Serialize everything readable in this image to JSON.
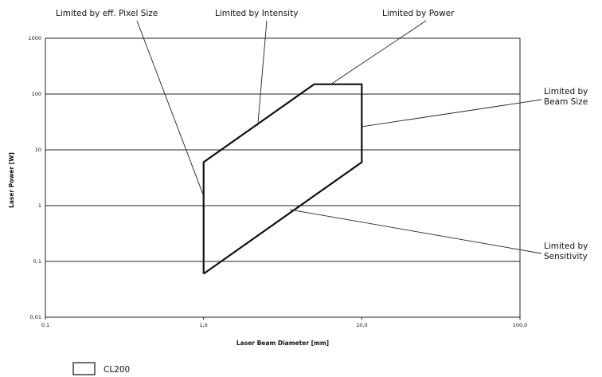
{
  "chart_data": {
    "type": "area",
    "xscale": "log",
    "yscale": "log",
    "xlabel": "Laser Beam Diameter [mm]",
    "ylabel": "Laser Power [W]",
    "xlim": [
      0.1,
      100
    ],
    "ylim": [
      0.01,
      1000
    ],
    "x_ticks": [
      0.1,
      1,
      10,
      100
    ],
    "x_tick_labels": [
      "0,1",
      "1,0",
      "10,0",
      "100,0"
    ],
    "y_ticks": [
      0.01,
      0.1,
      1,
      10,
      100,
      1000
    ],
    "y_tick_labels": [
      "0,01",
      "0,1",
      "1",
      "10",
      "100",
      "1000"
    ],
    "grid": "horizontal",
    "legend_position": "bottom-left",
    "series": [
      {
        "name": "CL200",
        "x": [
          1,
          1,
          5,
          10,
          10,
          1
        ],
        "y": [
          0.06,
          6,
          150,
          150,
          6,
          0.06
        ]
      }
    ],
    "annotations": [
      {
        "text": "Limited by eff. Pixel Size",
        "x": 1,
        "y": 1.5
      },
      {
        "text": "Limited by Intensity",
        "x": 2.2,
        "y": 27
      },
      {
        "text": "Limited by Power",
        "x": 6.5,
        "y": 155
      },
      {
        "text": "Limited by\nBeam Size",
        "x": 10,
        "y": 26
      },
      {
        "text": "Limited by\nSensitivity",
        "x": 3.5,
        "y": 0.85
      }
    ]
  }
}
